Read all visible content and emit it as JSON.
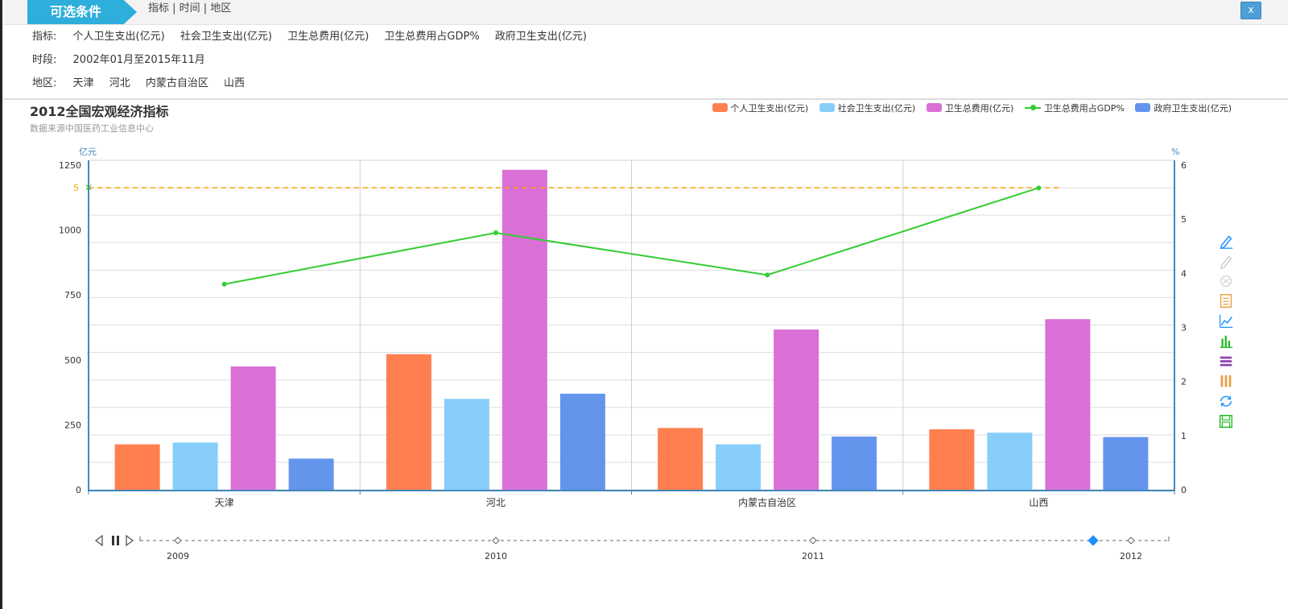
{
  "filter": {
    "tag": "可选条件",
    "crumb": "指标 | 时间 | 地区",
    "close_label": "x",
    "indicator_label": "指标:",
    "indicators": [
      "个人卫生支出(亿元)",
      "社会卫生支出(亿元)",
      "卫生总费用(亿元)",
      "卫生总费用占GDP%",
      "政府卫生支出(亿元)"
    ],
    "period_label": "时段:",
    "period": "2002年01月至2015年11月",
    "region_label": "地区:",
    "regions": [
      "天津",
      "河北",
      "内蒙古自治区",
      "山西"
    ]
  },
  "chart_data": {
    "type": "bar",
    "title": "2012全国宏观经济指标",
    "subtitle": "数据来源中国医药工业信息中心",
    "categories": [
      "天津",
      "河北",
      "内蒙古自治区",
      "山西"
    ],
    "series": [
      {
        "name": "个人卫生支出(亿元)",
        "type": "bar",
        "axis": "left",
        "color": "#ff7f50",
        "values": [
          175,
          522,
          238,
          233
        ]
      },
      {
        "name": "社会卫生支出(亿元)",
        "type": "bar",
        "axis": "left",
        "color": "#87cefa",
        "values": [
          182,
          350,
          175,
          220
        ]
      },
      {
        "name": "卫生总费用(亿元)",
        "type": "bar",
        "axis": "left",
        "color": "#da70d6",
        "values": [
          475,
          1232,
          617,
          657
        ]
      },
      {
        "name": "卫生总费用占GDP%",
        "type": "line",
        "axis": "right",
        "color": "#32cd32",
        "values": [
          3.8,
          4.75,
          3.97,
          5.58
        ]
      },
      {
        "name": "政府卫生支出(亿元)",
        "type": "bar",
        "axis": "left",
        "color": "#6495ed",
        "values": [
          120,
          370,
          205,
          203
        ]
      }
    ],
    "ylabel_left": "亿元",
    "ylabel_right": "%",
    "ylim_left": [
      0,
      1250
    ],
    "ylim_right": [
      0,
      6
    ],
    "left_ticks": [
      0,
      250,
      500,
      750,
      1000,
      1250
    ],
    "right_ticks": [
      0,
      1,
      2,
      3,
      4,
      5,
      6
    ],
    "mark_line": {
      "label": "5",
      "color": "#ffa500"
    },
    "grid": true,
    "legend_position": "top-right"
  },
  "timeline": {
    "years": [
      "2009",
      "2010",
      "2011",
      "2012"
    ],
    "current": "2012"
  },
  "toolbox": {
    "icons": [
      "mark-pen-icon",
      "mark-undo-icon",
      "mark-clear-icon",
      "data-view-icon",
      "line-chart-icon",
      "bar-chart-icon",
      "stack-icon",
      "tiled-icon",
      "restore-icon",
      "save-image-icon"
    ]
  }
}
